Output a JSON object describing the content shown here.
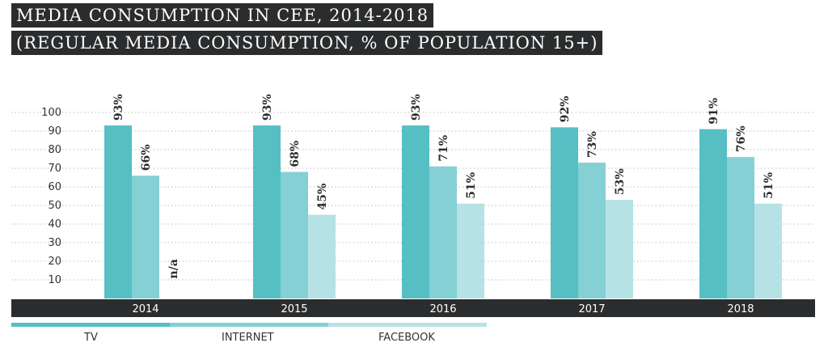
{
  "header": {
    "title_line1": "MEDIA CONSUMPTION IN CEE, 2014-2018",
    "title_line2": "(REGULAR MEDIA CONSUMPTION, % OF POPULATION 15+)"
  },
  "colors": {
    "tv": "#55bfc4",
    "internet": "#84d0d4",
    "facebook": "#b7e2e5",
    "axis_band": "#2a2c2e",
    "text": "#2a2c2e"
  },
  "chart_data": {
    "type": "bar",
    "title": "MEDIA CONSUMPTION IN CEE, 2014-2018 (REGULAR MEDIA CONSUMPTION, % OF POPULATION 15+)",
    "categories": [
      "2014",
      "2015",
      "2016",
      "2017",
      "2018"
    ],
    "series": [
      {
        "name": "TV",
        "values": [
          93,
          93,
          93,
          92,
          91
        ],
        "labels": [
          "93%",
          "93%",
          "93%",
          "92%",
          "91%"
        ]
      },
      {
        "name": "INTERNET",
        "values": [
          66,
          68,
          71,
          73,
          76
        ],
        "labels": [
          "66%",
          "68%",
          "71%",
          "73%",
          "76%"
        ]
      },
      {
        "name": "FACEBOOK",
        "values": [
          null,
          45,
          51,
          53,
          51
        ],
        "labels": [
          "n/a",
          "45%",
          "51%",
          "53%",
          "51%"
        ]
      }
    ],
    "yticks": [
      "10",
      "20",
      "30",
      "40",
      "50",
      "60",
      "70",
      "80",
      "90",
      "100"
    ],
    "ylim": [
      0,
      100
    ],
    "grid": true,
    "legend": [
      "TV",
      "INTERNET",
      "FACEBOOK"
    ],
    "legend_position": "bottom-left"
  }
}
